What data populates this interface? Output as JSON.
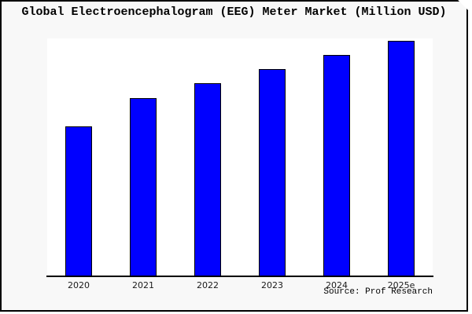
{
  "frame": {
    "page_bg": "#f8f8f8",
    "plot_bg": "#ffffff",
    "border_color": "#000000",
    "shadow_color": "#a0a0a0"
  },
  "chart_data": {
    "type": "bar",
    "title": "Global Electroencephalogram (EEG) Meter Market (Million USD)",
    "categories": [
      "2020",
      "2021",
      "2022",
      "2023",
      "2024",
      "2025e"
    ],
    "values": [
      0.63,
      0.75,
      0.81,
      0.87,
      0.93,
      0.99
    ],
    "value_note": "y-axis has no tick labels; values are bar heights as estimated fraction of plot height",
    "ylim": [
      0,
      1
    ],
    "xlabel": "",
    "ylabel": "",
    "grid": false,
    "legend": false,
    "y_axis_labels_visible": false,
    "bar_color": "#0000ff",
    "bar_edge_color": "#000000",
    "source": "Source: Prof Research"
  }
}
